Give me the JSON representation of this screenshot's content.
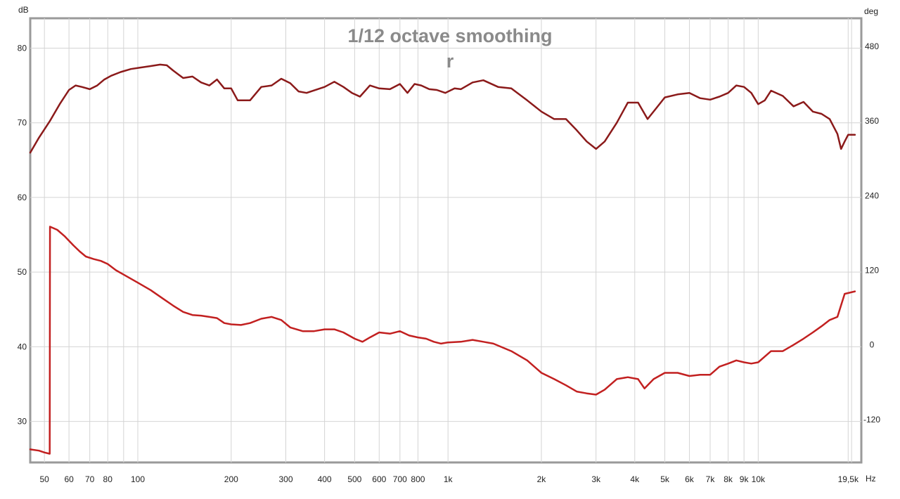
{
  "chart_data": {
    "type": "line",
    "title": "1/12 octave smoothing",
    "subtitle": "r",
    "x_scale": "log",
    "xlim": [
      45,
      21500
    ],
    "ylim_left": [
      24.5,
      84
    ],
    "ylim_right": [
      -189,
      525
    ],
    "left_unit": "dB",
    "right_unit": "deg",
    "x_unit": "Hz",
    "grid": true,
    "x_ticks": [
      {
        "value": 50,
        "label": "50"
      },
      {
        "value": 60,
        "label": "60"
      },
      {
        "value": 70,
        "label": "70"
      },
      {
        "value": 80,
        "label": "80"
      },
      {
        "value": 100,
        "label": "100"
      },
      {
        "value": 200,
        "label": "200"
      },
      {
        "value": 300,
        "label": "300"
      },
      {
        "value": 400,
        "label": "400"
      },
      {
        "value": 500,
        "label": "500"
      },
      {
        "value": 600,
        "label": "600"
      },
      {
        "value": 700,
        "label": "700"
      },
      {
        "value": 800,
        "label": "800"
      },
      {
        "value": 1000,
        "label": "1k"
      },
      {
        "value": 2000,
        "label": "2k"
      },
      {
        "value": 3000,
        "label": "3k"
      },
      {
        "value": 4000,
        "label": "4k"
      },
      {
        "value": 5000,
        "label": "5k"
      },
      {
        "value": 6000,
        "label": "6k"
      },
      {
        "value": 7000,
        "label": "7k"
      },
      {
        "value": 8000,
        "label": "8k"
      },
      {
        "value": 9000,
        "label": "9k"
      },
      {
        "value": 10000,
        "label": "10k"
      },
      {
        "value": 19500,
        "label": "19,5k"
      }
    ],
    "x_minor_grid": [
      90,
      20000
    ],
    "left_ticks": [
      30,
      40,
      50,
      60,
      70,
      80
    ],
    "right_ticks": [
      -120,
      0,
      120,
      240,
      360,
      480
    ],
    "series": [
      {
        "axis": "left",
        "color": "#8b1a1a",
        "x": [
          45,
          48,
          52,
          56,
          60,
          63,
          66,
          70,
          74,
          78,
          82,
          88,
          95,
          102,
          110,
          118,
          124,
          130,
          140,
          150,
          160,
          170,
          180,
          190,
          200,
          210,
          230,
          250,
          270,
          290,
          310,
          330,
          350,
          380,
          400,
          430,
          460,
          490,
          520,
          560,
          600,
          650,
          700,
          740,
          780,
          820,
          870,
          920,
          980,
          1050,
          1100,
          1200,
          1300,
          1450,
          1600,
          1800,
          2000,
          2200,
          2400,
          2600,
          2800,
          3000,
          3200,
          3500,
          3800,
          4100,
          4400,
          4700,
          5000,
          5500,
          6000,
          6500,
          7000,
          7500,
          8000,
          8500,
          9000,
          9500,
          10000,
          10500,
          11000,
          12000,
          13000,
          14000,
          15000,
          16000,
          17000,
          18000,
          18500,
          19000,
          19500,
          20500
        ],
        "values": [
          66.0,
          68.0,
          70.2,
          72.5,
          74.4,
          75.0,
          74.8,
          74.5,
          75.0,
          75.8,
          76.3,
          76.8,
          77.2,
          77.4,
          77.6,
          77.8,
          77.7,
          77.0,
          76.0,
          76.2,
          75.4,
          75.0,
          75.8,
          74.6,
          74.6,
          73.0,
          73.0,
          74.8,
          75.0,
          75.9,
          75.3,
          74.2,
          74.0,
          74.5,
          74.8,
          75.5,
          74.8,
          74.0,
          73.5,
          75.0,
          74.6,
          74.5,
          75.2,
          74.0,
          75.2,
          75.0,
          74.5,
          74.4,
          74.0,
          74.6,
          74.5,
          75.4,
          75.7,
          74.8,
          74.6,
          73.0,
          71.5,
          70.5,
          70.5,
          69.0,
          67.5,
          66.5,
          67.5,
          70.0,
          72.7,
          72.7,
          70.5,
          72.0,
          73.4,
          73.8,
          74.0,
          73.3,
          73.1,
          73.5,
          74.0,
          75.0,
          74.8,
          74.0,
          72.5,
          73.0,
          74.3,
          73.6,
          72.2,
          72.8,
          71.5,
          71.2,
          70.5,
          68.5,
          66.5,
          67.5,
          68.4,
          68.4
        ]
      },
      {
        "axis": "right",
        "color": "#c22020",
        "x": [
          45,
          48,
          50,
          52,
          52.1,
          55,
          58,
          62,
          65,
          68,
          72,
          76,
          80,
          85,
          90,
          100,
          110,
          120,
          130,
          140,
          150,
          160,
          170,
          180,
          190,
          200,
          215,
          230,
          250,
          270,
          290,
          310,
          340,
          370,
          400,
          430,
          460,
          500,
          530,
          560,
          600,
          650,
          700,
          750,
          800,
          850,
          900,
          950,
          1000,
          1100,
          1200,
          1300,
          1400,
          1600,
          1800,
          2000,
          2200,
          2400,
          2600,
          2800,
          3000,
          3200,
          3500,
          3800,
          4100,
          4300,
          4600,
          5000,
          5500,
          6000,
          6500,
          7000,
          7500,
          8000,
          8500,
          9000,
          9500,
          10000,
          11000,
          12000,
          13000,
          14000,
          15000,
          16000,
          17000,
          18000,
          19000,
          20500
        ],
        "values": [
          -168,
          -170,
          -173,
          -175,
          190,
          185,
          175,
          160,
          150,
          142,
          138,
          135,
          130,
          120,
          113,
          100,
          88,
          75,
          63,
          53,
          48,
          47,
          45,
          43,
          35,
          33,
          32,
          35,
          42,
          45,
          40,
          28,
          22,
          22,
          25,
          25,
          20,
          10,
          5,
          12,
          20,
          18,
          22,
          15,
          12,
          10,
          5,
          2,
          4,
          5,
          8,
          5,
          2,
          -10,
          -25,
          -45,
          -55,
          -65,
          -75,
          -78,
          -80,
          -72,
          -55,
          -52,
          -55,
          -70,
          -55,
          -45,
          -45,
          -50,
          -48,
          -48,
          -35,
          -30,
          -25,
          -28,
          -30,
          -28,
          -10,
          -10,
          0,
          10,
          20,
          30,
          40,
          45,
          82,
          86
        ]
      }
    ]
  }
}
